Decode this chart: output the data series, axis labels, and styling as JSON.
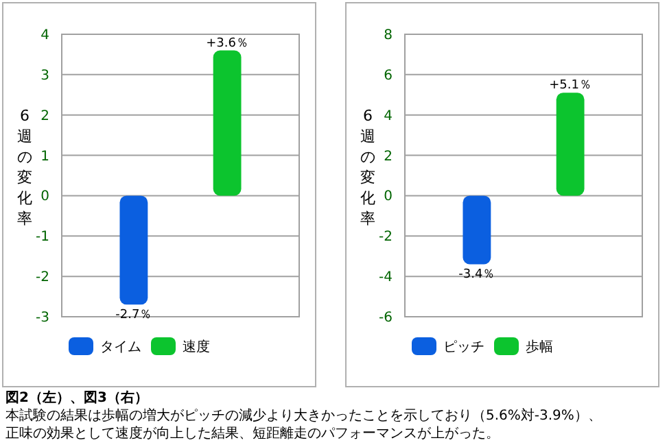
{
  "chart_data": [
    {
      "type": "bar",
      "ylabel": "6週の変化率",
      "categories": [
        null,
        null
      ],
      "ylim": [
        -3,
        4
      ],
      "yticks": [
        -3,
        -2,
        -1,
        0,
        1,
        2,
        3,
        4
      ],
      "grid": "y",
      "legend": "bottom",
      "tick_labels": "y",
      "series": [
        {
          "name": "タイム",
          "color": "#0b5fe0",
          "values": [
            -2.7,
            null
          ],
          "value_labels": [
            "-2.7％",
            null
          ]
        },
        {
          "name": "速度",
          "color": "#0cc42e",
          "values": [
            null,
            3.6
          ],
          "value_labels": [
            null,
            "+3.6％"
          ]
        }
      ]
    },
    {
      "type": "bar",
      "ylabel": "6週の変化率",
      "categories": [
        null,
        null
      ],
      "ylim": [
        -6,
        8
      ],
      "yticks": [
        -6,
        -4,
        -2,
        0,
        2,
        4,
        6,
        8
      ],
      "grid": "y",
      "legend": "bottom",
      "tick_labels": "y",
      "series": [
        {
          "name": "ピッチ",
          "color": "#0b5fe0",
          "values": [
            -3.4,
            null
          ],
          "value_labels": [
            "-3.4％",
            null
          ]
        },
        {
          "name": "歩幅",
          "color": "#0cc42e",
          "values": [
            null,
            5.1
          ],
          "value_labels": [
            null,
            "+5.1％"
          ]
        }
      ]
    },
    {
      "type": "other",
      "title": "図2（左）、図3（右）",
      "annotations": [
        "本試験の結果は歩幅の増大がピッチの減少より大きかったことを示しており（5.6%対-3.9%）、",
        "正味の効果として速度が向上した結果、短距離走のパフォーマンスが上がった。"
      ]
    }
  ]
}
